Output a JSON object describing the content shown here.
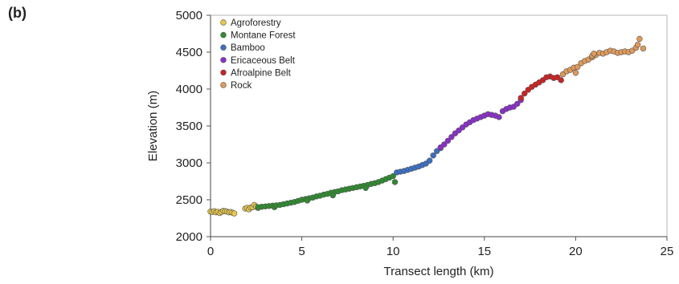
{
  "panel_label": "(b)",
  "chart_data": {
    "type": "scatter",
    "title": "",
    "xlabel": "Transect length (km)",
    "ylabel": "Elevation (m)",
    "xlim": [
      0,
      25
    ],
    "ylim": [
      2000,
      5000
    ],
    "xticks": [
      0,
      5,
      10,
      15,
      20,
      25
    ],
    "yticks": [
      2000,
      2500,
      3000,
      3500,
      4000,
      4500,
      5000
    ],
    "grid": true,
    "legend_position": "top-left",
    "series": [
      {
        "name": "Agroforestry",
        "color": "#e8c84a",
        "points": [
          [
            0.0,
            2340
          ],
          [
            0.1,
            2335
          ],
          [
            0.2,
            2345
          ],
          [
            0.3,
            2330
          ],
          [
            0.4,
            2338
          ],
          [
            0.5,
            2320
          ],
          [
            0.6,
            2335
          ],
          [
            0.7,
            2350
          ],
          [
            0.8,
            2345
          ],
          [
            0.9,
            2340
          ],
          [
            1.0,
            2330
          ],
          [
            1.1,
            2335
          ],
          [
            1.2,
            2325
          ],
          [
            1.3,
            2315
          ],
          [
            1.9,
            2380
          ],
          [
            2.0,
            2390
          ],
          [
            2.1,
            2370
          ],
          [
            2.2,
            2395
          ],
          [
            2.3,
            2400
          ],
          [
            2.4,
            2430
          ],
          [
            2.5,
            2405
          ],
          [
            2.6,
            2390
          ]
        ]
      },
      {
        "name": "Montane Forest",
        "color": "#2e8b2e",
        "points": [
          [
            2.6,
            2400
          ],
          [
            2.8,
            2405
          ],
          [
            3.0,
            2410
          ],
          [
            3.2,
            2415
          ],
          [
            3.4,
            2420
          ],
          [
            3.5,
            2400
          ],
          [
            3.6,
            2425
          ],
          [
            3.8,
            2430
          ],
          [
            4.0,
            2440
          ],
          [
            4.2,
            2450
          ],
          [
            4.4,
            2460
          ],
          [
            4.6,
            2470
          ],
          [
            4.8,
            2485
          ],
          [
            5.0,
            2500
          ],
          [
            5.2,
            2510
          ],
          [
            5.4,
            2520
          ],
          [
            5.6,
            2530
          ],
          [
            5.8,
            2545
          ],
          [
            6.0,
            2555
          ],
          [
            6.2,
            2570
          ],
          [
            6.4,
            2580
          ],
          [
            6.6,
            2595
          ],
          [
            6.8,
            2605
          ],
          [
            7.0,
            2615
          ],
          [
            7.2,
            2630
          ],
          [
            7.4,
            2640
          ],
          [
            7.6,
            2650
          ],
          [
            7.8,
            2660
          ],
          [
            8.0,
            2670
          ],
          [
            8.2,
            2680
          ],
          [
            8.4,
            2690
          ],
          [
            8.6,
            2700
          ],
          [
            8.8,
            2715
          ],
          [
            9.0,
            2725
          ],
          [
            9.2,
            2740
          ],
          [
            9.4,
            2760
          ],
          [
            9.6,
            2780
          ],
          [
            9.8,
            2800
          ],
          [
            10.0,
            2820
          ],
          [
            10.1,
            2740
          ],
          [
            6.7,
            2560
          ],
          [
            5.3,
            2490
          ],
          [
            8.5,
            2660
          ]
        ]
      },
      {
        "name": "Bamboo",
        "color": "#3b6fc4",
        "points": [
          [
            10.2,
            2870
          ],
          [
            10.4,
            2880
          ],
          [
            10.6,
            2890
          ],
          [
            10.8,
            2905
          ],
          [
            11.0,
            2920
          ],
          [
            11.2,
            2935
          ],
          [
            11.4,
            2950
          ],
          [
            11.6,
            2970
          ],
          [
            11.8,
            2990
          ],
          [
            12.0,
            3030
          ],
          [
            12.2,
            3100
          ],
          [
            12.4,
            3160
          ],
          [
            12.6,
            3200
          ]
        ]
      },
      {
        "name": "Ericaceous Belt",
        "color": "#8a2fc9",
        "points": [
          [
            12.6,
            3210
          ],
          [
            12.8,
            3250
          ],
          [
            13.0,
            3300
          ],
          [
            13.2,
            3350
          ],
          [
            13.4,
            3400
          ],
          [
            13.6,
            3440
          ],
          [
            13.8,
            3480
          ],
          [
            14.0,
            3520
          ],
          [
            14.2,
            3550
          ],
          [
            14.4,
            3580
          ],
          [
            14.6,
            3600
          ],
          [
            14.8,
            3620
          ],
          [
            15.0,
            3640
          ],
          [
            15.2,
            3660
          ],
          [
            15.4,
            3650
          ],
          [
            15.6,
            3640
          ],
          [
            15.8,
            3620
          ],
          [
            16.0,
            3700
          ],
          [
            16.2,
            3730
          ],
          [
            16.4,
            3750
          ],
          [
            16.6,
            3760
          ],
          [
            16.8,
            3800
          ],
          [
            17.0,
            3850
          ]
        ]
      },
      {
        "name": "Afroalpine Belt",
        "color": "#cc2222",
        "points": [
          [
            17.0,
            3880
          ],
          [
            17.2,
            3940
          ],
          [
            17.4,
            3990
          ],
          [
            17.6,
            4030
          ],
          [
            17.8,
            4060
          ],
          [
            18.0,
            4090
          ],
          [
            18.2,
            4120
          ],
          [
            18.4,
            4160
          ],
          [
            18.6,
            4170
          ],
          [
            18.8,
            4150
          ],
          [
            19.0,
            4160
          ],
          [
            19.2,
            4120
          ]
        ]
      },
      {
        "name": "Rock",
        "color": "#e09a5a",
        "points": [
          [
            19.3,
            4200
          ],
          [
            19.5,
            4240
          ],
          [
            19.7,
            4260
          ],
          [
            19.9,
            4290
          ],
          [
            20.1,
            4300
          ],
          [
            20.3,
            4350
          ],
          [
            20.5,
            4380
          ],
          [
            20.7,
            4400
          ],
          [
            20.9,
            4430
          ],
          [
            21.1,
            4460
          ],
          [
            21.3,
            4490
          ],
          [
            21.5,
            4480
          ],
          [
            21.7,
            4500
          ],
          [
            21.9,
            4520
          ],
          [
            22.1,
            4510
          ],
          [
            22.3,
            4490
          ],
          [
            22.5,
            4500
          ],
          [
            22.7,
            4510
          ],
          [
            22.9,
            4500
          ],
          [
            23.1,
            4520
          ],
          [
            23.3,
            4560
          ],
          [
            23.4,
            4600
          ],
          [
            23.5,
            4680
          ],
          [
            23.7,
            4550
          ],
          [
            20.0,
            4220
          ],
          [
            20.9,
            4450
          ],
          [
            21.0,
            4480
          ]
        ]
      }
    ]
  }
}
